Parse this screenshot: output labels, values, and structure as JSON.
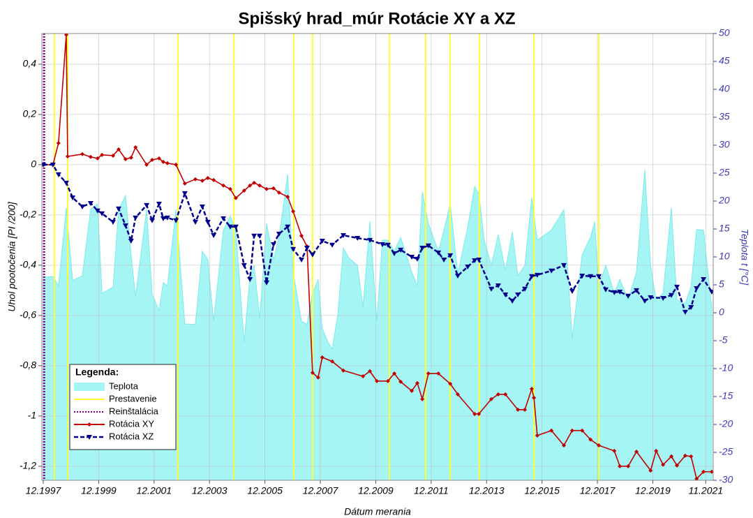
{
  "chart_data": {
    "type": "line",
    "title": "Spišský hrad_múr    Rotácie XY a XZ",
    "xlabel": "Dátum merania",
    "ylabel": "Uhol pootočenia [PI /200]",
    "y2label": "Teplota t [°C]",
    "legend_title": "Legenda:",
    "legend": "lower left",
    "grid": true,
    "xlim": [
      1997.87,
      2022.1
    ],
    "xticks": [
      {
        "value": 1997.92,
        "label": "12.1997"
      },
      {
        "value": 1999.92,
        "label": "12.1999"
      },
      {
        "value": 2001.92,
        "label": "12.2001"
      },
      {
        "value": 2003.92,
        "label": "12.2003"
      },
      {
        "value": 2005.92,
        "label": "12.2005"
      },
      {
        "value": 2007.92,
        "label": "12.2007"
      },
      {
        "value": 2009.92,
        "label": "12.2009"
      },
      {
        "value": 2011.92,
        "label": "12.2011"
      },
      {
        "value": 2013.92,
        "label": "12.2013"
      },
      {
        "value": 2015.92,
        "label": "12.2015"
      },
      {
        "value": 2017.92,
        "label": "12.2017"
      },
      {
        "value": 2019.92,
        "label": "12.2019"
      },
      {
        "value": 2021.83,
        "label": "11.2021"
      }
    ],
    "ylim": [
      -1.256,
      0.522
    ],
    "yticks": [
      {
        "value": 0.4,
        "label": "0,4"
      },
      {
        "value": 0.2,
        "label": "0,2"
      },
      0,
      {
        "value": -0.2,
        "label": "-0,2"
      },
      {
        "value": -0.4,
        "label": "-0,4"
      },
      {
        "value": -0.6,
        "label": "-0,6"
      },
      {
        "value": -0.8,
        "label": "-0,8"
      },
      -1,
      {
        "value": -1.2,
        "label": "-1,2"
      }
    ],
    "y2lim": [
      -30,
      50
    ],
    "y2ticks": [
      -30,
      -25,
      -20,
      -15,
      -10,
      -5,
      0,
      5,
      10,
      15,
      20,
      25,
      30,
      35,
      40,
      45,
      50
    ],
    "series": [
      {
        "name": "Teplota",
        "type": "area",
        "axis": "y2",
        "color": "#a6f5f5",
        "x": [
          1997.92,
          1998.27,
          1998.47,
          1998.75,
          1998.98,
          1999.33,
          1999.63,
          1999.88,
          2000.04,
          2000.44,
          2000.64,
          2000.89,
          2001.09,
          2001.25,
          2001.65,
          2001.85,
          2002.1,
          2002.25,
          2002.4,
          2002.71,
          2003.03,
          2003.41,
          2003.66,
          2003.86,
          2004.07,
          2004.42,
          2004.67,
          2004.87,
          2005.17,
          2005.38,
          2005.53,
          2005.73,
          2005.98,
          2006.23,
          2006.43,
          2006.74,
          2006.94,
          2007.24,
          2007.44,
          2007.64,
          2007.84,
          2007.99,
          2008.2,
          2008.35,
          2008.55,
          2008.75,
          2008.95,
          2009.26,
          2009.46,
          2009.71,
          2009.96,
          2010.16,
          2010.36,
          2010.59,
          2010.82,
          2011.22,
          2011.42,
          2011.6,
          2011.82,
          2012.18,
          2012.38,
          2012.61,
          2012.88,
          2013.24,
          2013.49,
          2013.64,
          2013.84,
          2014.09,
          2014.34,
          2014.6,
          2014.85,
          2015.05,
          2015.3,
          2015.55,
          2015.75,
          2016.26,
          2016.71,
          2017.01,
          2017.37,
          2017.67,
          2017.82,
          2017.97,
          2018.22,
          2018.53,
          2018.73,
          2019.03,
          2019.33,
          2019.63,
          2019.84,
          2020.04,
          2020.29,
          2020.59,
          2020.79,
          2021.09,
          2021.3,
          2021.5,
          2021.75,
          2022.05
        ],
        "values": [
          6.4,
          6.5,
          4.8,
          18.8,
          5.8,
          6.6,
          18.5,
          19.5,
          3.5,
          4.6,
          18.5,
          21,
          10.4,
          2.9,
          18.5,
          3.3,
          0.4,
          5.4,
          4.8,
          18.5,
          -2,
          -2.1,
          11,
          9.5,
          -1.5,
          14.8,
          17.3,
          14.8,
          -5.3,
          6.6,
          8.5,
          -1,
          16,
          9.5,
          13.5,
          24.8,
          7.3,
          -1.5,
          -2.1,
          3.5,
          6,
          -2.8,
          -5.3,
          -6.5,
          -0.3,
          11.6,
          9.8,
          8.5,
          1,
          16.3,
          -1.5,
          13,
          13,
          11,
          13.5,
          7.3,
          4.8,
          21.6,
          16,
          11,
          14.8,
          19.5,
          7,
          15.4,
          22.6,
          21.3,
          12.9,
          8.5,
          14,
          7.6,
          14.5,
          6.6,
          8.5,
          20.6,
          13,
          14.8,
          18.5,
          -4.6,
          10.4,
          13.5,
          16.3,
          4.8,
          8.5,
          3.5,
          6,
          2.3,
          7.3,
          25.6,
          8.5,
          2.3,
          3.5,
          18.8,
          2.3,
          1.6,
          4.8,
          14.9,
          14.8,
          0.8
        ]
      },
      {
        "name": "Prestavenie",
        "type": "vline",
        "color": "#ffff33",
        "x": [
          1998.32,
          1998.8,
          2002.78,
          2004.8,
          2006.96,
          2007.64,
          2010.41,
          2011.72,
          2012.6,
          2013.66,
          2015.63,
          2017.97
        ]
      },
      {
        "name": "Reinštalácia",
        "type": "vline",
        "dash": "dotted",
        "color": "#800080",
        "x": [
          1997.95
        ]
      },
      {
        "name": "Rotácia XY",
        "type": "line",
        "marker": "diamond",
        "color": "#c00000",
        "x": [
          1997.92,
          1998.27,
          1998.47,
          1998.75,
          1998.8,
          1999.33,
          1999.63,
          1999.88,
          2000.04,
          2000.44,
          2000.64,
          2000.89,
          2001.09,
          2001.25,
          2001.65,
          2001.85,
          2002.1,
          2002.25,
          2002.4,
          2002.71,
          2003.03,
          2003.41,
          2003.66,
          2003.86,
          2004.07,
          2004.42,
          2004.67,
          2004.87,
          2005.17,
          2005.38,
          2005.53,
          2005.73,
          2005.98,
          2006.23,
          2006.43,
          2006.74,
          2006.94,
          2007.24,
          2007.44,
          2007.64,
          2007.84,
          2007.99,
          2008.35,
          2008.75,
          2009.46,
          2009.71,
          2009.96,
          2010.36,
          2010.59,
          2010.82,
          2011.22,
          2011.42,
          2011.6,
          2011.82,
          2012.18,
          2012.61,
          2012.88,
          2013.49,
          2013.64,
          2014.09,
          2014.34,
          2014.6,
          2015.05,
          2015.3,
          2015.55,
          2015.63,
          2015.75,
          2016.26,
          2016.71,
          2017.01,
          2017.37,
          2017.67,
          2017.97,
          2018.53,
          2018.73,
          2019.03,
          2019.33,
          2019.84,
          2020.04,
          2020.29,
          2020.59,
          2020.79,
          2021.09,
          2021.3,
          2021.5,
          2021.75,
          2022.05
        ],
        "values": [
          0,
          0,
          0.086,
          0.517,
          0.033,
          0.042,
          0.031,
          0.025,
          0.039,
          0.036,
          0.061,
          0.022,
          0.028,
          0.069,
          0,
          0.019,
          0.025,
          0.011,
          0.006,
          0,
          -0.075,
          -0.058,
          -0.064,
          -0.053,
          -0.061,
          -0.083,
          -0.097,
          -0.133,
          -0.103,
          -0.083,
          -0.072,
          -0.083,
          -0.097,
          -0.094,
          -0.111,
          -0.128,
          -0.186,
          -0.283,
          -0.325,
          -0.828,
          -0.847,
          -0.767,
          -0.783,
          -0.819,
          -0.842,
          -0.822,
          -0.861,
          -0.861,
          -0.831,
          -0.864,
          -0.9,
          -0.869,
          -0.933,
          -0.831,
          -0.831,
          -0.872,
          -0.914,
          -0.992,
          -0.992,
          -0.933,
          -0.914,
          -0.914,
          -0.975,
          -0.975,
          -0.892,
          -0.928,
          -1.078,
          -1.058,
          -1.117,
          -1.058,
          -1.058,
          -1.094,
          -1.117,
          -1.139,
          -1.2,
          -1.2,
          -1.142,
          -1.217,
          -1.139,
          -1.194,
          -1.161,
          -1.197,
          -1.158,
          -1.161,
          -1.25,
          -1.222,
          -1.222
        ]
      },
      {
        "name": "Rotácia XZ",
        "type": "line",
        "marker": "triangle",
        "dash": "dashed",
        "color": "#00008b",
        "x": [
          1997.92,
          1998.27,
          1998.47,
          1998.75,
          1998.98,
          1999.33,
          1999.63,
          1999.88,
          2000.04,
          2000.44,
          2000.64,
          2000.89,
          2001.09,
          2001.25,
          2001.65,
          2001.85,
          2002.1,
          2002.25,
          2002.4,
          2002.71,
          2003.03,
          2003.41,
          2003.66,
          2003.86,
          2004.07,
          2004.42,
          2004.67,
          2004.87,
          2005.17,
          2005.38,
          2005.53,
          2005.73,
          2005.98,
          2006.23,
          2006.43,
          2006.74,
          2006.94,
          2007.24,
          2007.44,
          2007.64,
          2007.99,
          2008.35,
          2008.75,
          2009.26,
          2009.71,
          2010.16,
          2010.36,
          2010.59,
          2010.82,
          2011.22,
          2011.42,
          2011.6,
          2011.82,
          2012.18,
          2012.38,
          2012.61,
          2012.88,
          2013.24,
          2013.49,
          2013.64,
          2014.09,
          2014.34,
          2014.6,
          2014.85,
          2015.05,
          2015.3,
          2015.55,
          2015.75,
          2016.26,
          2016.71,
          2017.01,
          2017.37,
          2017.67,
          2017.97,
          2018.22,
          2018.53,
          2018.73,
          2019.03,
          2019.33,
          2019.63,
          2019.84,
          2020.29,
          2020.59,
          2020.79,
          2021.09,
          2021.3,
          2021.5,
          2021.75,
          2022.05
        ],
        "values": [
          0,
          0,
          -0.039,
          -0.072,
          -0.131,
          -0.167,
          -0.153,
          -0.183,
          -0.194,
          -0.228,
          -0.175,
          -0.242,
          -0.303,
          -0.211,
          -0.161,
          -0.222,
          -0.156,
          -0.214,
          -0.211,
          -0.222,
          -0.114,
          -0.228,
          -0.167,
          -0.228,
          -0.281,
          -0.214,
          -0.247,
          -0.247,
          -0.4,
          -0.456,
          -0.283,
          -0.283,
          -0.469,
          -0.317,
          -0.275,
          -0.247,
          -0.336,
          -0.378,
          -0.331,
          -0.358,
          -0.303,
          -0.319,
          -0.281,
          -0.292,
          -0.3,
          -0.317,
          -0.319,
          -0.353,
          -0.339,
          -0.367,
          -0.375,
          -0.331,
          -0.322,
          -0.35,
          -0.378,
          -0.361,
          -0.442,
          -0.406,
          -0.381,
          -0.378,
          -0.494,
          -0.481,
          -0.517,
          -0.542,
          -0.517,
          -0.494,
          -0.444,
          -0.439,
          -0.422,
          -0.4,
          -0.503,
          -0.442,
          -0.444,
          -0.444,
          -0.497,
          -0.508,
          -0.506,
          -0.522,
          -0.5,
          -0.542,
          -0.528,
          -0.531,
          -0.519,
          -0.486,
          -0.586,
          -0.567,
          -0.492,
          -0.456,
          -0.506
        ]
      }
    ]
  }
}
